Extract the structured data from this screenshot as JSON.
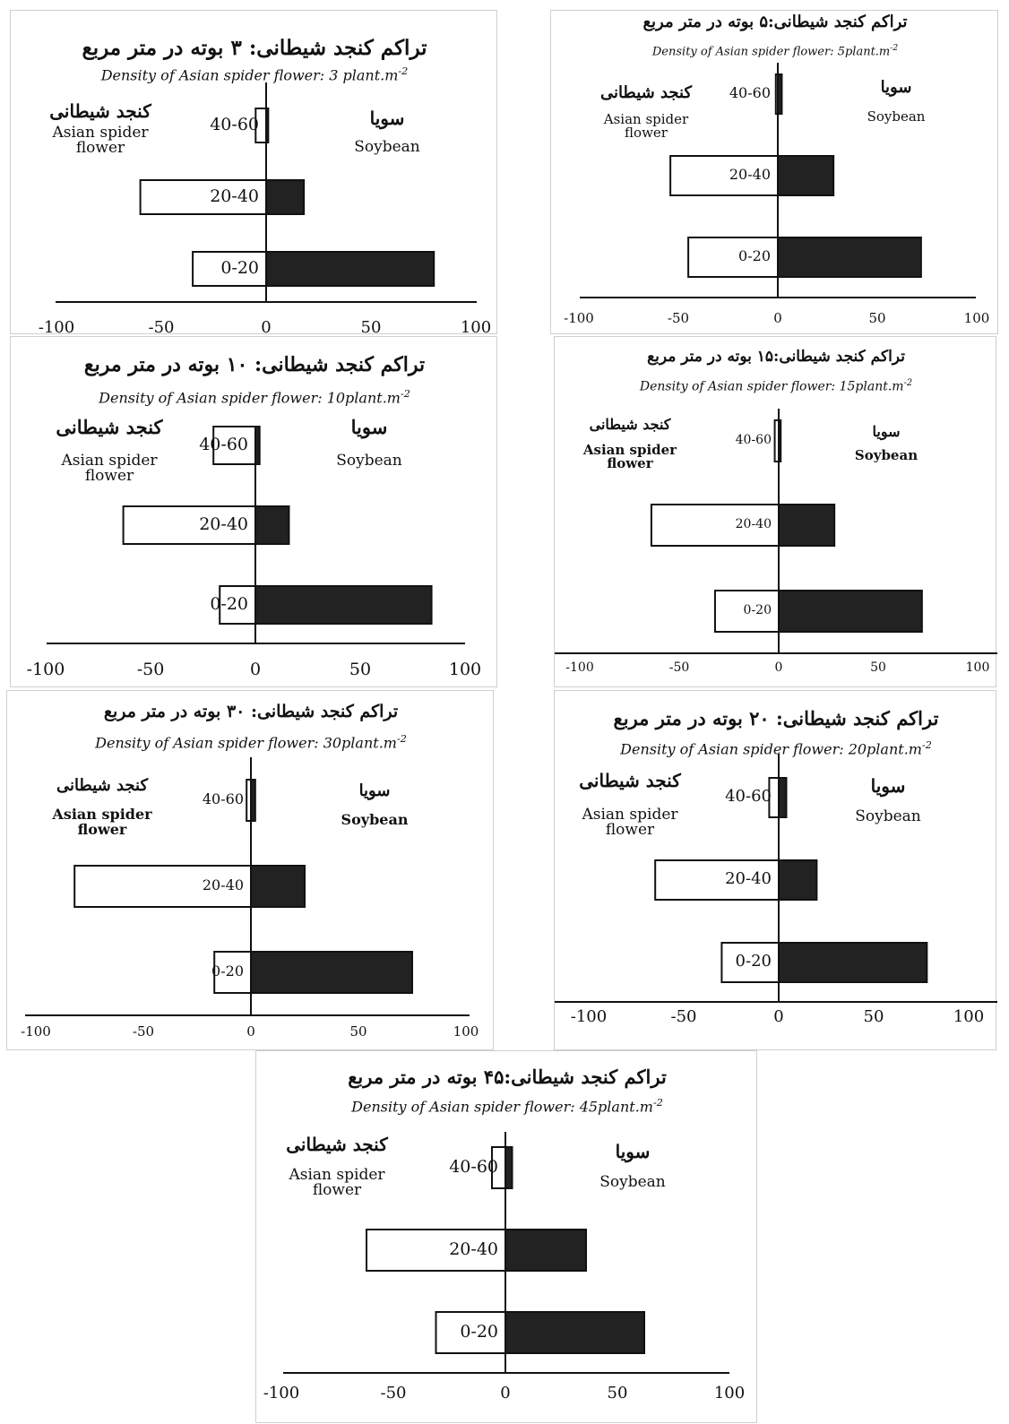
{
  "chart_data": [
    {
      "type": "bar",
      "orientation": "horizontal",
      "title": "تراکم کنجد شیطانی: ۳ بوته در متر مربع",
      "subtitle": "Density of Asian spider flower: 3 plant.m",
      "subtitle_sup": "-2",
      "left_label_fa": "کنجد شیطانی",
      "left_label_en": "Asian spider flower",
      "right_label_fa": "سویا",
      "right_label_en": "Soybean",
      "categories": [
        "40-60",
        "20-40",
        "0-20"
      ],
      "series": [
        {
          "name": "Asian spider flower",
          "color": "#ffffff",
          "values": [
            -5,
            -60,
            -35
          ]
        },
        {
          "name": "Soybean",
          "color": "#222222",
          "values": [
            1,
            18,
            80
          ]
        }
      ],
      "xlim": [
        -100,
        100
      ],
      "xticks": [
        "-100",
        "-50",
        "0",
        "50",
        "100"
      ]
    },
    {
      "type": "bar",
      "orientation": "horizontal",
      "title": "تراکم کنجد شیطانی:۵ بوته در متر مربع",
      "subtitle": "Density of Asian spider flower: 5plant.m",
      "subtitle_sup": "-2",
      "left_label_fa": "کنجد شیطانی",
      "left_label_en": "Asian spider flower",
      "right_label_fa": "سویا",
      "right_label_en": "Soybean",
      "categories": [
        "40-60",
        "20-40",
        "0-20"
      ],
      "series": [
        {
          "name": "Asian spider flower",
          "color": "#ffffff",
          "values": [
            -1,
            -54,
            -45
          ]
        },
        {
          "name": "Soybean",
          "color": "#222222",
          "values": [
            2,
            28,
            72
          ]
        }
      ],
      "xlim": [
        -100,
        100
      ],
      "xticks": [
        "-100",
        "-50",
        "0",
        "50",
        "100"
      ]
    },
    {
      "type": "bar",
      "orientation": "horizontal",
      "title": "تراکم کنجد شیطانی: ۱۰ بوته در متر مربع",
      "subtitle": "Density of Asian spider flower: 10plant.m",
      "subtitle_sup": "-2",
      "left_label_fa": "کنجد شیطانی",
      "left_label_en": "Asian spider flower",
      "right_label_fa": "سویا",
      "right_label_en": "Soybean",
      "categories": [
        "40-60",
        "20-40",
        "0-20"
      ],
      "series": [
        {
          "name": "Asian spider flower",
          "color": "#ffffff",
          "values": [
            -20,
            -63,
            -17
          ]
        },
        {
          "name": "Soybean",
          "color": "#222222",
          "values": [
            2,
            16,
            84
          ]
        }
      ],
      "xlim": [
        -100,
        100
      ],
      "xticks": [
        "-100",
        "-50",
        "0",
        "50",
        "100"
      ]
    },
    {
      "type": "bar",
      "orientation": "horizontal",
      "title": "تراکم کنجد شیطانی:۱۵ بوته در متر مربع",
      "subtitle": "Density of Asian spider flower: 15plant.m",
      "subtitle_sup": "-2",
      "left_label_fa": "کنجد شیطانی",
      "left_label_en": "Asian spider flower",
      "right_label_fa": "سویا",
      "right_label_en": "Soybean",
      "categories": [
        "40-60",
        "20-40",
        "0-20"
      ],
      "series": [
        {
          "name": "Asian spider flower",
          "color": "#ffffff",
          "values": [
            -2,
            -64,
            -32
          ]
        },
        {
          "name": "Soybean",
          "color": "#222222",
          "values": [
            1,
            28,
            72
          ]
        }
      ],
      "xlim": [
        -100,
        100
      ],
      "xticks": [
        "-100",
        "-50",
        "0",
        "50",
        "100"
      ]
    },
    {
      "type": "bar",
      "orientation": "horizontal",
      "title": "تراکم کنجد شیطانی: ۳۰ بوته در متر مربع",
      "subtitle": "Density of Asian spider flower: 30plant.m",
      "subtitle_sup": "-2",
      "left_label_fa": "کنجد شیطانی",
      "left_label_en": "Asian spider flower",
      "right_label_fa": "سویا",
      "right_label_en": "Soybean",
      "categories": [
        "40-60",
        "20-40",
        "0-20"
      ],
      "series": [
        {
          "name": "Asian spider flower",
          "color": "#ffffff",
          "values": [
            -2,
            -82,
            -17
          ]
        },
        {
          "name": "Soybean",
          "color": "#222222",
          "values": [
            2,
            25,
            75
          ]
        }
      ],
      "xlim": [
        -100,
        100
      ],
      "xticks": [
        "-100",
        "-50",
        "0",
        "50",
        "100"
      ]
    },
    {
      "type": "bar",
      "orientation": "horizontal",
      "title": "تراکم کنجد شیطانی: ۲۰ بوته در متر مربع",
      "subtitle": "Density of Asian spider flower: 20plant.m",
      "subtitle_sup": "-2",
      "left_label_fa": "کنجد شیطانی",
      "left_label_en": "Asian spider flower",
      "right_label_fa": "سویا",
      "right_label_en": "Soybean",
      "categories": [
        "40-60",
        "20-40",
        "0-20"
      ],
      "series": [
        {
          "name": "Asian spider flower",
          "color": "#ffffff",
          "values": [
            -5,
            -65,
            -30
          ]
        },
        {
          "name": "Soybean",
          "color": "#222222",
          "values": [
            4,
            20,
            78
          ]
        }
      ],
      "xlim": [
        -100,
        100
      ],
      "xticks": [
        "-100",
        "-50",
        "0",
        "50",
        "100"
      ]
    },
    {
      "type": "bar",
      "orientation": "horizontal",
      "title": "تراکم کنجد شیطانی:۴۵ بوته در متر مربع",
      "subtitle": "Density of Asian spider flower: 45plant.m",
      "subtitle_sup": "-2",
      "left_label_fa": "کنجد شیطانی",
      "left_label_en": "Asian spider flower",
      "right_label_fa": "سویا",
      "right_label_en": "Soybean",
      "categories": [
        "40-60",
        "20-40",
        "0-20"
      ],
      "series": [
        {
          "name": "Asian spider flower",
          "color": "#ffffff",
          "values": [
            -6,
            -62,
            -31
          ]
        },
        {
          "name": "Soybean",
          "color": "#222222",
          "values": [
            3,
            36,
            62
          ]
        }
      ],
      "xlim": [
        -100,
        100
      ],
      "xticks": [
        "-100",
        "-50",
        "0",
        "50",
        "100"
      ]
    }
  ]
}
